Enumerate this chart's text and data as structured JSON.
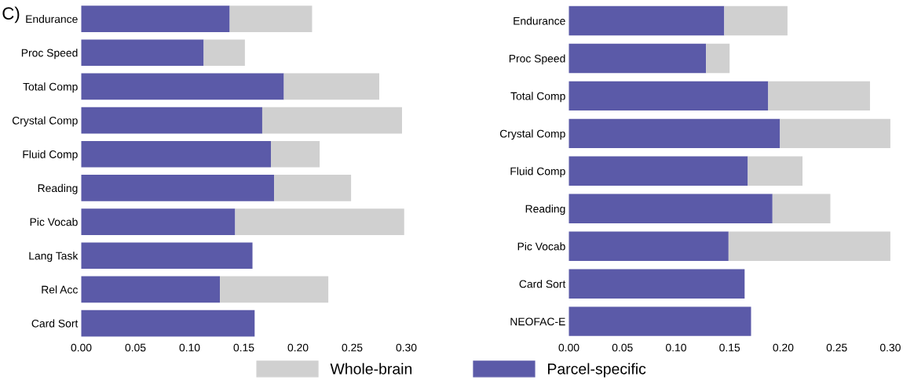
{
  "chart_data": [
    {
      "type": "bar",
      "orientation": "horizontal",
      "stacked": true,
      "annotations": [
        "C)"
      ],
      "categories": [
        "Endurance",
        "Proc Speed",
        "Total Comp",
        "Crystal Comp",
        "Fluid Comp",
        "Reading",
        "Pic Vocab",
        "Lang Task",
        "Rel Acc",
        "Card Sort"
      ],
      "series": [
        {
          "name": "Parcel-specific",
          "color": "#5b5aa8",
          "values": [
            0.137,
            0.113,
            0.187,
            0.167,
            0.175,
            0.178,
            0.142,
            0.158,
            0.128,
            0.16
          ]
        },
        {
          "name": "Whole-brain",
          "color": "#d0d0d0",
          "values": [
            0.076,
            0.038,
            0.088,
            0.129,
            0.045,
            0.071,
            0.156,
            null,
            0.1,
            null
          ]
        }
      ],
      "xlim": [
        0,
        0.3
      ],
      "xticks": [
        {
          "value": 0,
          "label": "0.00"
        },
        {
          "value": 0.05,
          "label": "0.05"
        },
        {
          "value": 0.1,
          "label": "0.10"
        },
        {
          "value": 0.15,
          "label": "0.15"
        },
        {
          "value": 0.2,
          "label": "0.20"
        },
        {
          "value": 0.25,
          "label": "0.25"
        },
        {
          "value": 0.3,
          "label": "0.30"
        }
      ],
      "grid": false,
      "legend": "bottom"
    },
    {
      "type": "bar",
      "orientation": "horizontal",
      "stacked": true,
      "categories": [
        "Endurance",
        "Proc Speed",
        "Total Comp",
        "Crystal Comp",
        "Fluid Comp",
        "Reading",
        "Pic Vocab",
        "Card Sort",
        "NEOFAC-E"
      ],
      "series": [
        {
          "color": "#5b5aa8",
          "values": [
            0.145,
            0.128,
            0.186,
            0.197,
            0.167,
            0.19,
            0.149,
            0.164,
            0.17
          ]
        },
        {
          "color": "#d0d0d0",
          "values": [
            0.059,
            0.022,
            0.095,
            0.103,
            0.051,
            0.054,
            0.151,
            null,
            null
          ]
        }
      ],
      "xlim": [
        0,
        0.3
      ],
      "xticks": [
        {
          "value": 0,
          "label": "0.00"
        },
        {
          "value": 0.05,
          "label": "0.05"
        },
        {
          "value": 0.1,
          "label": "0.10"
        },
        {
          "value": 0.15,
          "label": "0.15"
        },
        {
          "value": 0.2,
          "label": "0.20"
        },
        {
          "value": 0.25,
          "label": "0.25"
        },
        {
          "value": 0.3,
          "label": "0.30"
        }
      ],
      "grid": false
    }
  ]
}
